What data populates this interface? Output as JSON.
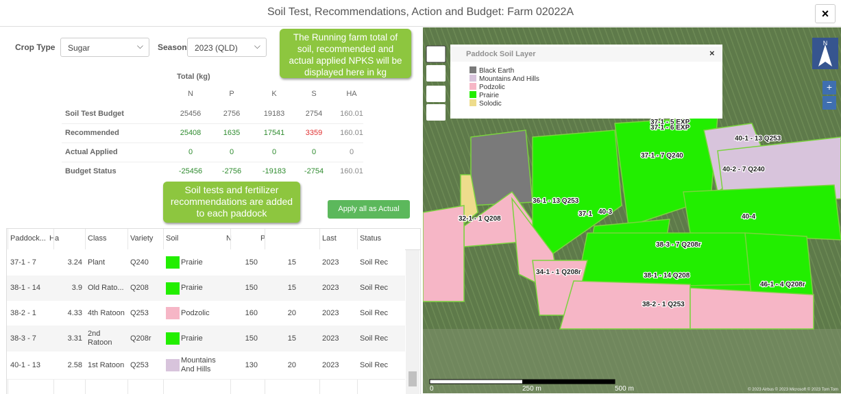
{
  "header": {
    "title": "Soil Test, Recommendations, Action and Budget: Farm 02022A",
    "close": "×"
  },
  "form": {
    "crop_label": "Crop Type",
    "crop": "Sugar",
    "season_label": "Season",
    "season": "2023 (QLD)"
  },
  "callouts": [
    "The Running farm total of soil, recommended and actual applied NPKS will be displayed here in kg",
    "Soil tests and fertilizer recommendations are added to each paddock"
  ],
  "totals": {
    "title": "Total (kg)",
    "columns": [
      "N",
      "P",
      "K",
      "S",
      "HA"
    ],
    "rows": [
      {
        "label": "Soil Test Budget",
        "values": [
          25456,
          2756,
          19183,
          2754,
          160.01
        ]
      },
      {
        "label": "Recommended",
        "values": [
          25408,
          1635,
          17541,
          3359,
          160.01
        ]
      },
      {
        "label": "Actual Applied",
        "values": [
          0,
          0,
          0,
          0,
          0
        ]
      },
      {
        "label": "Budget Status",
        "values": [
          -25456,
          -2756,
          -19183,
          -2754,
          160.01
        ]
      }
    ]
  },
  "button": "Apply all as Actual",
  "paddocks": {
    "columns": [
      "Paddock...",
      "Ha",
      "Class",
      "Variety",
      "Soil",
      "N",
      "P",
      "Last",
      "Status"
    ],
    "rows": [
      [
        "37-1 - 7",
        3.24,
        "Plant",
        "Q240",
        "Prairie",
        150,
        15,
        2023,
        "Soil Rec"
      ],
      [
        "38-1 - 14",
        3.9,
        "Old Rato...",
        "Q208",
        "Prairie",
        150,
        15,
        2023,
        "Soil Rec"
      ],
      [
        "38-2 - 1",
        4.33,
        "4th Ratoon",
        "Q253",
        "Podzolic",
        160,
        20,
        2023,
        "Soil Rec"
      ],
      [
        "38-3 - 7",
        3.31,
        "2nd Ratoon",
        "Q208r",
        "Prairie",
        150,
        15,
        2023,
        "Soil Rec"
      ],
      [
        "40-1 - 13",
        2.58,
        "1st Ratoon",
        "Q253",
        "Mountains And Hills",
        130,
        20,
        2023,
        "Soil Rec"
      ]
    ]
  },
  "map": {
    "layer_title": "Paddock Soil Layer",
    "close": "×",
    "legend": [
      {
        "name": "Black Earth",
        "color": "#7a7a7a"
      },
      {
        "name": "Mountains And Hills",
        "color": "#d8c4dc"
      },
      {
        "name": "Podzolic",
        "color": "#f6b6c6"
      },
      {
        "name": "Prairie",
        "color": "#22ee00"
      },
      {
        "name": "Solodic",
        "color": "#eedc8c"
      }
    ],
    "labels": [
      "37-1 - 5 EXP",
      "37-1 - 6 EXP",
      "40-1 - 13 Q253",
      "37-1 - 7 Q240",
      "40-2 - 7 Q240",
      "36-1 - 13 Q253",
      "32-1 - 1 Q208",
      "37-1",
      "40-3",
      "40-4",
      "38-3 - 7 Q208r",
      "34-1 - 1 Q208r",
      "38-1 - 14 Q208",
      "46-1 - 4 Q208r",
      "38-2 - 1 Q253"
    ],
    "north": "N",
    "scale": [
      "0",
      "250 m",
      "500 m"
    ],
    "attribution": "© 2023 Airbus © 2023 Microsoft © 2023 Tom Tom"
  }
}
